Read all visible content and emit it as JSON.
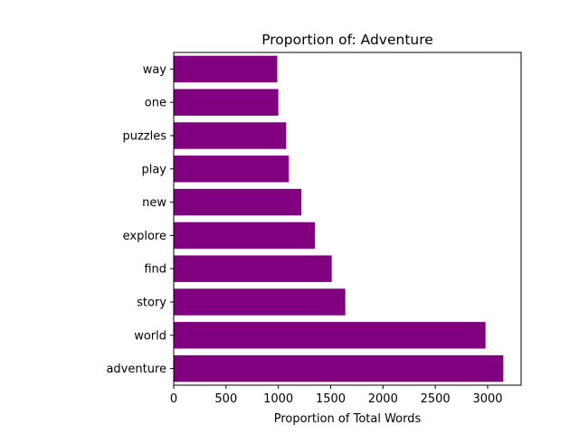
{
  "chart_data": {
    "type": "bar",
    "orientation": "horizontal",
    "title": "Proportion of: Adventure",
    "xlabel": "Proportion of Total Words",
    "ylabel": "",
    "categories": [
      "adventure",
      "world",
      "story",
      "find",
      "explore",
      "new",
      "play",
      "puzzles",
      "one",
      "way"
    ],
    "values": [
      3150,
      2980,
      1640,
      1510,
      1350,
      1220,
      1100,
      1075,
      1000,
      990
    ],
    "xlim": [
      0,
      3320
    ],
    "xticks": [
      0,
      500,
      1000,
      1500,
      2000,
      2500,
      3000
    ],
    "xtick_labels": [
      "0",
      "500",
      "1000",
      "1500",
      "2000",
      "2500",
      "3000"
    ],
    "bar_color": "#800080",
    "grid": false,
    "legend": "none"
  }
}
